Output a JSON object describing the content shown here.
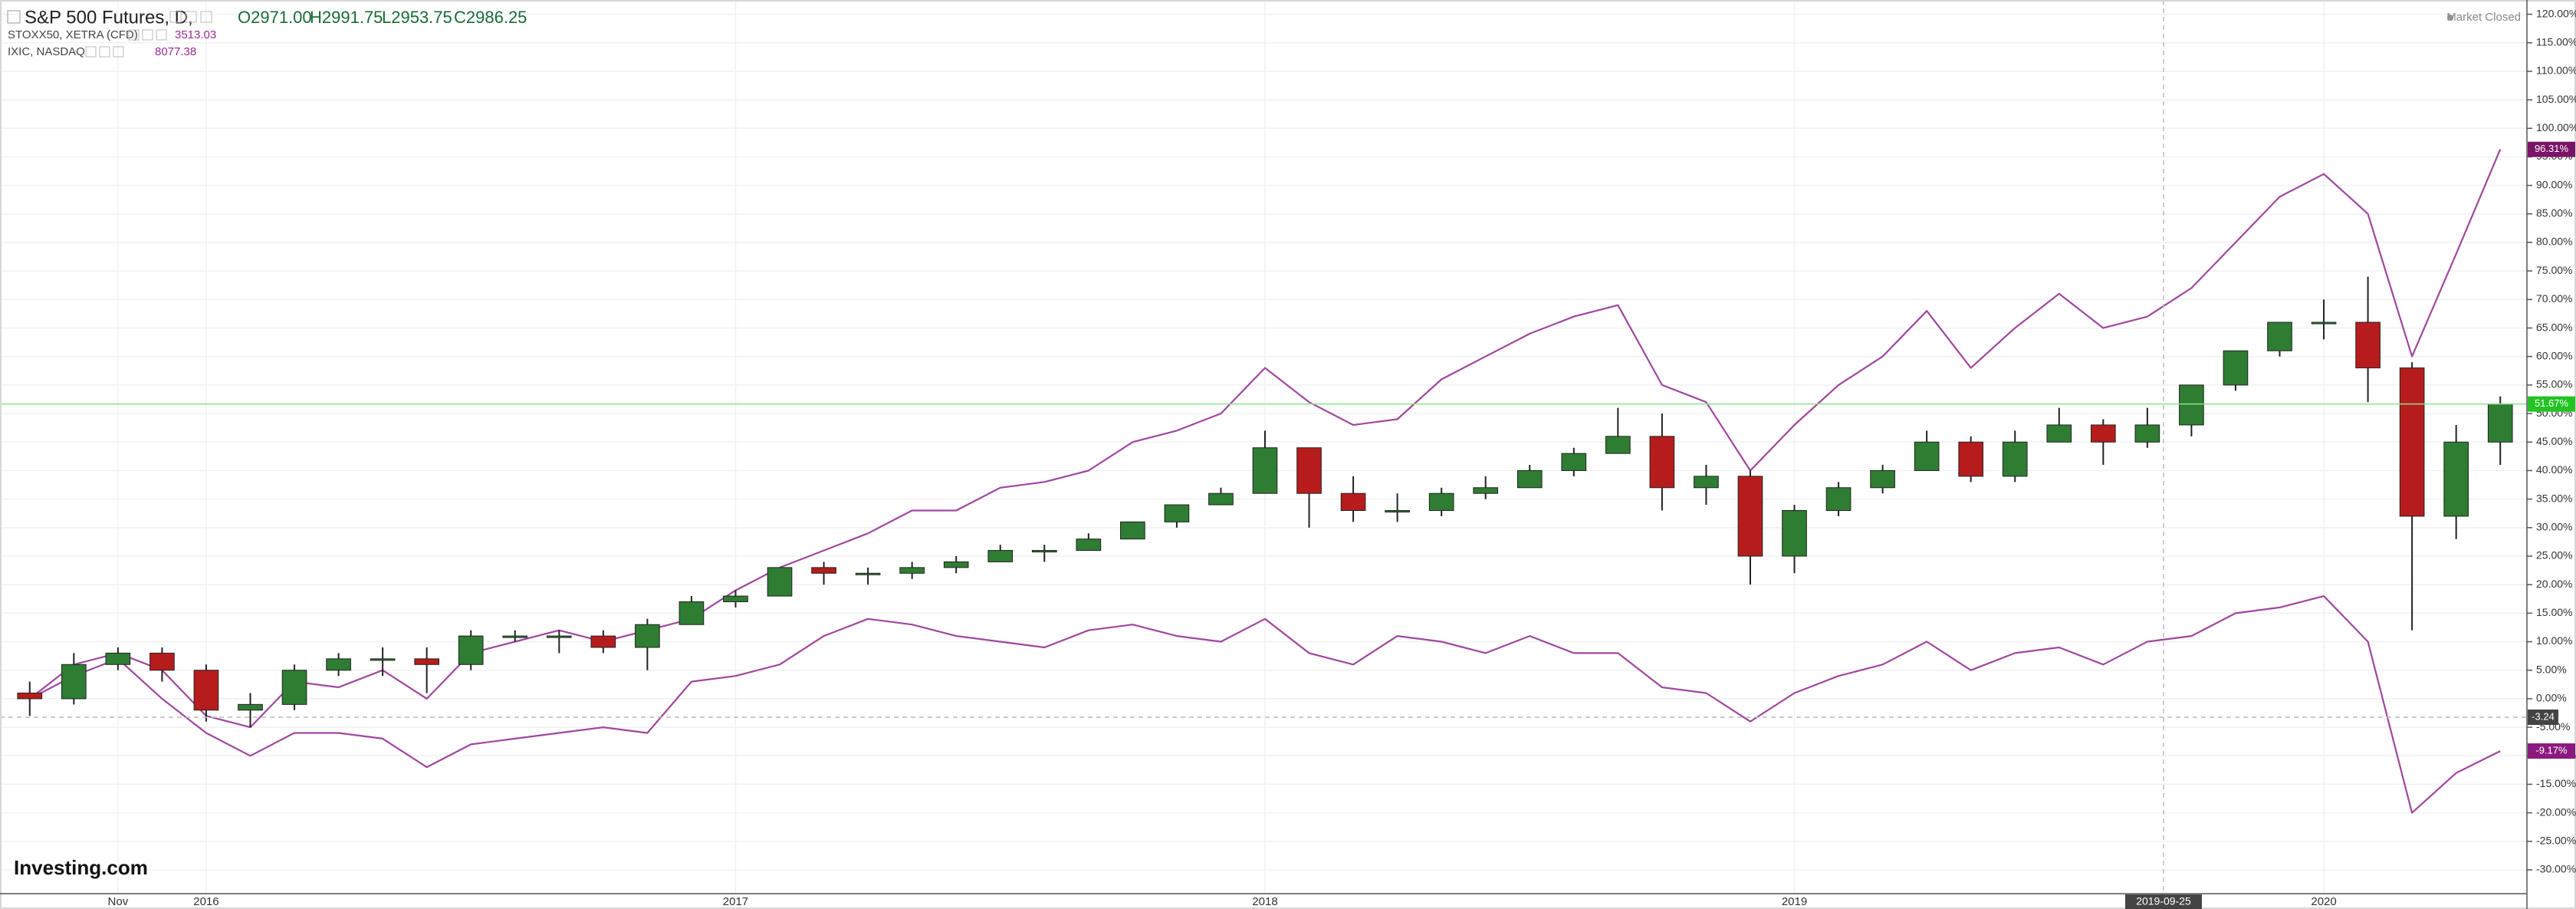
{
  "chart_data": {
    "type": "candlestick",
    "title": "S&P 500 Futures, D,",
    "ohlc": [
      "O2971.00",
      "H2991.75",
      "L2953.75",
      "C2986.25"
    ],
    "status": "Market Closed",
    "logo": "Investing.com",
    "categories": [
      null,
      null,
      "Nov",
      null,
      "2016",
      null,
      null,
      null,
      null,
      null,
      null,
      null,
      null,
      null,
      null,
      null,
      "2017",
      null,
      null,
      null,
      null,
      null,
      null,
      null,
      null,
      null,
      null,
      null,
      "2018",
      null,
      null,
      null,
      null,
      null,
      null,
      null,
      null,
      null,
      null,
      null,
      "2019",
      null,
      null,
      null,
      null,
      null,
      null,
      null,
      null,
      null,
      null,
      null,
      "2020",
      null,
      null,
      null,
      null
    ],
    "ylim": [
      -33.5,
      122.5
    ],
    "yticks": [
      {
        "value": 120,
        "label": "120.00%"
      },
      {
        "value": 115,
        "label": "115.00%"
      },
      {
        "value": 110,
        "label": "110.00%"
      },
      {
        "value": 105,
        "label": "105.00%"
      },
      {
        "value": 100,
        "label": "100.00%"
      },
      {
        "value": 95,
        "label": "95.00%"
      },
      {
        "value": 90,
        "label": "90.00%"
      },
      {
        "value": 85,
        "label": "85.00%"
      },
      {
        "value": 80,
        "label": "80.00%"
      },
      {
        "value": 75,
        "label": "75.00%"
      },
      {
        "value": 70,
        "label": "70.00%"
      },
      {
        "value": 65,
        "label": "65.00%"
      },
      {
        "value": 60,
        "label": "60.00%"
      },
      {
        "value": 55,
        "label": "55.00%"
      },
      {
        "value": 50,
        "label": "50.00%"
      },
      {
        "value": 45,
        "label": "45.00%"
      },
      {
        "value": 40,
        "label": "40.00%"
      },
      {
        "value": 35,
        "label": "35.00%"
      },
      {
        "value": 30,
        "label": "30.00%"
      },
      {
        "value": 25,
        "label": "25.00%"
      },
      {
        "value": 20,
        "label": "20.00%"
      },
      {
        "value": 15,
        "label": "15.00%"
      },
      {
        "value": 10,
        "label": "10.00%"
      },
      {
        "value": 5,
        "label": "5.00%"
      },
      {
        "value": 0,
        "label": "0.00%"
      },
      {
        "value": -5,
        "label": "-5.00%"
      },
      {
        "value": -10,
        "label": "-10.00%"
      },
      {
        "value": -15,
        "label": "-15.00%"
      },
      {
        "value": -20,
        "label": "-20.00%"
      },
      {
        "value": -25,
        "label": "-25.00%"
      },
      {
        "value": -30,
        "label": "-30.00%"
      }
    ],
    "grid": true,
    "candles": {
      "up_color": "#2e7d32",
      "down_color": "#b71c1c",
      "last_label": "51.67%",
      "last_color": "#22c322",
      "open": [
        1,
        0,
        6,
        8,
        5,
        -2,
        -1,
        5,
        7,
        7,
        6,
        11,
        11,
        11,
        9,
        13,
        17,
        18,
        23,
        22,
        22,
        23,
        24,
        26,
        26,
        28,
        31,
        34,
        36,
        44,
        36,
        33,
        33,
        36,
        37,
        40,
        43,
        46,
        37,
        39,
        25,
        33,
        37,
        40,
        45,
        39,
        45,
        48,
        45,
        48,
        55,
        61,
        66,
        66,
        58,
        32,
        45
      ],
      "high": [
        3,
        8,
        9,
        9,
        6,
        1,
        6,
        8,
        9,
        9,
        12,
        12,
        12,
        12,
        14,
        18,
        19,
        23,
        24,
        23,
        24,
        25,
        27,
        27,
        29,
        31,
        34,
        37,
        47,
        44,
        39,
        36,
        37,
        39,
        41,
        44,
        51,
        50,
        41,
        40,
        34,
        38,
        41,
        47,
        46,
        47,
        51,
        49,
        51,
        55,
        61,
        66,
        70,
        74,
        59,
        48,
        53
      ],
      "low": [
        -3,
        -1,
        5,
        3,
        -4,
        -5,
        -2,
        4,
        4,
        1,
        5,
        10,
        8,
        8,
        5,
        13,
        16,
        18,
        20,
        20,
        21,
        22,
        24,
        24,
        26,
        28,
        30,
        34,
        36,
        30,
        31,
        31,
        32,
        35,
        37,
        39,
        43,
        33,
        34,
        20,
        22,
        32,
        36,
        40,
        38,
        38,
        45,
        41,
        44,
        46,
        54,
        60,
        63,
        52,
        12,
        28,
        41
      ],
      "close": [
        0,
        6,
        8,
        5,
        -2,
        -1,
        5,
        7,
        7,
        6,
        11,
        11,
        11,
        9,
        13,
        17,
        18,
        23,
        22,
        22,
        23,
        24,
        26,
        26,
        28,
        31,
        34,
        36,
        44,
        36,
        33,
        33,
        36,
        37,
        40,
        43,
        46,
        37,
        39,
        25,
        33,
        37,
        40,
        45,
        39,
        45,
        48,
        45,
        48,
        55,
        61,
        66,
        66,
        58,
        32,
        45,
        51.67
      ]
    },
    "series": [
      {
        "name": "STOXX50, XETRA (CFD)",
        "quote": "3513.03",
        "color": "#a0479f",
        "label_color": "#8b1a7e",
        "last_label": "-9.17%",
        "values": [
          0,
          4,
          7,
          0,
          -6,
          -10,
          -6,
          -6,
          -7,
          -12,
          -8,
          -7,
          -6,
          -5,
          -6,
          3,
          4,
          6,
          11,
          14,
          13,
          11,
          10,
          9,
          12,
          13,
          11,
          10,
          14,
          8,
          6,
          11,
          10,
          8,
          11,
          8,
          8,
          2,
          1,
          -4,
          1,
          4,
          6,
          10,
          5,
          8,
          9,
          6,
          10,
          11,
          15,
          16,
          18,
          10,
          -20,
          -13,
          -9.17
        ]
      },
      {
        "name": "IXIC, NASDAQ",
        "quote": "8077.38",
        "color": "#a0479f",
        "label_color": "#7a1466",
        "last_label": "96.31%",
        "values": [
          0,
          6,
          8,
          5,
          -3,
          -5,
          3,
          2,
          5,
          0,
          8,
          10,
          12,
          10,
          12,
          14,
          19,
          23,
          26,
          29,
          33,
          33,
          37,
          38,
          40,
          45,
          47,
          50,
          58,
          52,
          48,
          49,
          56,
          60,
          64,
          67,
          69,
          55,
          52,
          40,
          48,
          55,
          60,
          68,
          58,
          65,
          71,
          65,
          67,
          72,
          80,
          88,
          92,
          85,
          60,
          78,
          96.31
        ]
      }
    ],
    "crosshair": {
      "x_label": "2019-09-25",
      "y": -3.24
    }
  }
}
